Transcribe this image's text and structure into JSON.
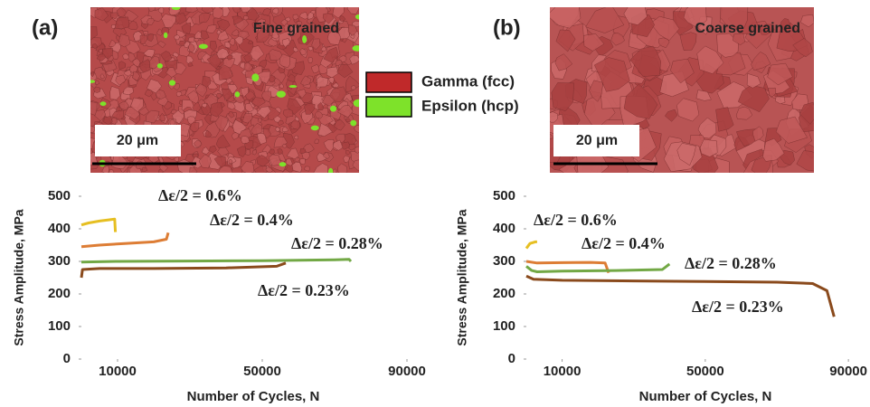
{
  "chart_data": [
    {
      "type": "line",
      "xlabel": "Number of Cycles, N",
      "ylabel": "Stress Amplitude, MPa",
      "xlim": [
        0,
        95000
      ],
      "ylim": [
        0,
        500
      ],
      "xticks": [
        10000,
        50000,
        90000
      ],
      "yticks": [
        0,
        100,
        200,
        300,
        400,
        500
      ],
      "series": [
        {
          "name": "Δε/2 = 0.6%",
          "color": "#e6bf22",
          "x": [
            0,
            2000,
            5000,
            8000,
            9200,
            9400
          ],
          "values": [
            412,
            418,
            424,
            428,
            430,
            390
          ]
        },
        {
          "name": "Δε/2 = 0.4%",
          "color": "#dd7d35",
          "x": [
            0,
            5000,
            12000,
            20000,
            23500,
            24000
          ],
          "values": [
            345,
            350,
            355,
            360,
            368,
            388
          ]
        },
        {
          "name": "Δε/2 = 0.28%",
          "color": "#72a845",
          "x": [
            0,
            10000,
            30000,
            50000,
            70000,
            74000,
            74500
          ],
          "values": [
            298,
            300,
            301,
            302,
            305,
            306,
            300
          ]
        },
        {
          "name": "Δε/2 = 0.23%",
          "color": "#8a4a1c",
          "x": [
            0,
            300,
            5000,
            20000,
            40000,
            54000,
            56500
          ],
          "values": [
            250,
            275,
            278,
            278,
            280,
            285,
            295
          ]
        }
      ]
    },
    {
      "type": "line",
      "xlabel": "Number of Cycles, N",
      "ylabel": "Stress Amplitude, MPa",
      "xlim": [
        0,
        93000
      ],
      "ylim": [
        0,
        500
      ],
      "xticks": [
        10000,
        50000,
        90000
      ],
      "yticks": [
        0,
        100,
        200,
        300,
        400,
        500
      ],
      "series": [
        {
          "name": "Δε/2 = 0.6%",
          "color": "#e6bf22",
          "x": [
            0,
            1000,
            2500,
            3000
          ],
          "values": [
            340,
            355,
            360,
            360
          ]
        },
        {
          "name": "Δε/2 = 0.4%",
          "color": "#dd7d35",
          "x": [
            0,
            3000,
            10000,
            18000,
            22000,
            23000
          ],
          "values": [
            300,
            295,
            296,
            297,
            295,
            265
          ]
        },
        {
          "name": "Δε/2 = 0.28%",
          "color": "#72a845",
          "x": [
            0,
            1500,
            3000,
            10000,
            25000,
            38000,
            40000
          ],
          "values": [
            285,
            272,
            268,
            270,
            272,
            275,
            292
          ]
        },
        {
          "name": "Δε/2 = 0.23%",
          "color": "#8a4a1c",
          "x": [
            0,
            2000,
            10000,
            30000,
            50000,
            70000,
            80000,
            84000,
            86000
          ],
          "values": [
            255,
            245,
            242,
            240,
            238,
            236,
            232,
            210,
            130
          ]
        }
      ]
    }
  ],
  "figure": {
    "panels": [
      {
        "label": "(a)",
        "caption": "Fine grained",
        "scale_bar": "20 μm"
      },
      {
        "label": "(b)",
        "caption": "Coarse grained",
        "scale_bar": "20 μm"
      }
    ],
    "legend": [
      {
        "name": "Gamma  (fcc)",
        "color": "#c0292a"
      },
      {
        "name": "Epsilon (hcp)",
        "color": "#7ee22a"
      }
    ]
  }
}
